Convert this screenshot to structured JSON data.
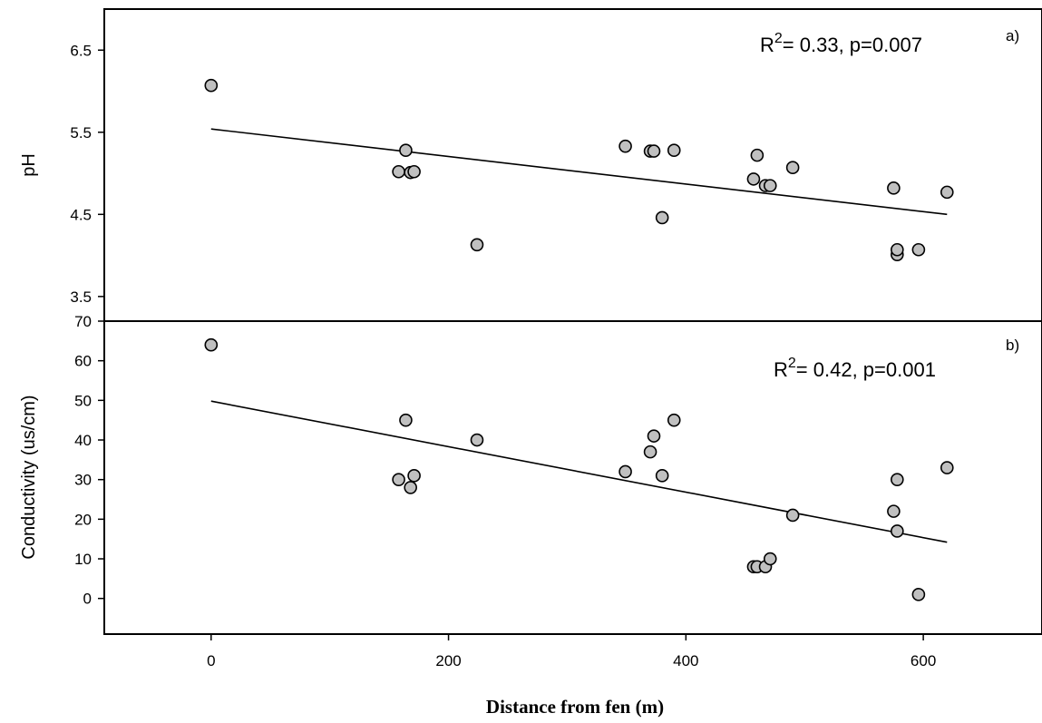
{
  "chart_data": [
    {
      "type": "scatter",
      "panel_label": "a)",
      "ylabel": "pH",
      "xlim": [
        -90,
        700
      ],
      "ylim": [
        3.2,
        7.0
      ],
      "yticks": [
        3.5,
        4.5,
        5.5,
        6.5
      ],
      "ytick_labels": [
        "3.5",
        "4.5",
        "5.5",
        "6.5"
      ],
      "annotation": {
        "main": "R",
        "sup": "2",
        "rest": "= 0.33, p=0.007"
      },
      "points": [
        {
          "x": 0,
          "y": 6.07
        },
        {
          "x": 158,
          "y": 5.02
        },
        {
          "x": 164,
          "y": 5.28
        },
        {
          "x": 168,
          "y": 5.01
        },
        {
          "x": 171,
          "y": 5.02
        },
        {
          "x": 224,
          "y": 4.13
        },
        {
          "x": 349,
          "y": 5.33
        },
        {
          "x": 370,
          "y": 5.27
        },
        {
          "x": 373,
          "y": 5.27
        },
        {
          "x": 380,
          "y": 4.46
        },
        {
          "x": 390,
          "y": 5.28
        },
        {
          "x": 457,
          "y": 4.93
        },
        {
          "x": 460,
          "y": 5.22
        },
        {
          "x": 467,
          "y": 4.85
        },
        {
          "x": 471,
          "y": 4.85
        },
        {
          "x": 490,
          "y": 5.07
        },
        {
          "x": 575,
          "y": 4.82
        },
        {
          "x": 578,
          "y": 4.01
        },
        {
          "x": 578,
          "y": 4.07
        },
        {
          "x": 596,
          "y": 4.07
        },
        {
          "x": 620,
          "y": 4.77
        }
      ],
      "fit": {
        "x": [
          0,
          620
        ],
        "y": [
          5.54,
          4.5
        ]
      }
    },
    {
      "type": "scatter",
      "panel_label": "b)",
      "ylabel": "Conductivity (us/cm)",
      "xlabel": "Distance from fen (m)",
      "xlim": [
        -90,
        700
      ],
      "ylim": [
        -9,
        70
      ],
      "yticks": [
        0,
        10,
        20,
        30,
        40,
        50,
        60,
        70
      ],
      "ytick_labels": [
        "0",
        "10",
        "20",
        "30",
        "40",
        "50",
        "60",
        "70"
      ],
      "xticks": [
        0,
        200,
        400,
        600
      ],
      "xtick_labels": [
        "0",
        "200",
        "400",
        "600"
      ],
      "annotation": {
        "main": "R",
        "sup": "2",
        "rest": "= 0.42, p=0.001"
      },
      "points": [
        {
          "x": 0,
          "y": 64
        },
        {
          "x": 158,
          "y": 30
        },
        {
          "x": 164,
          "y": 45
        },
        {
          "x": 168,
          "y": 28
        },
        {
          "x": 171,
          "y": 31
        },
        {
          "x": 224,
          "y": 40
        },
        {
          "x": 349,
          "y": 32
        },
        {
          "x": 370,
          "y": 37
        },
        {
          "x": 373,
          "y": 41
        },
        {
          "x": 380,
          "y": 31
        },
        {
          "x": 390,
          "y": 45
        },
        {
          "x": 457,
          "y": 8
        },
        {
          "x": 460,
          "y": 8
        },
        {
          "x": 467,
          "y": 8
        },
        {
          "x": 471,
          "y": 10
        },
        {
          "x": 490,
          "y": 21
        },
        {
          "x": 575,
          "y": 22
        },
        {
          "x": 578,
          "y": 17
        },
        {
          "x": 578,
          "y": 30
        },
        {
          "x": 596,
          "y": 1
        },
        {
          "x": 620,
          "y": 33
        }
      ],
      "fit": {
        "x": [
          0,
          620
        ],
        "y": [
          49.8,
          14.2
        ]
      }
    }
  ]
}
